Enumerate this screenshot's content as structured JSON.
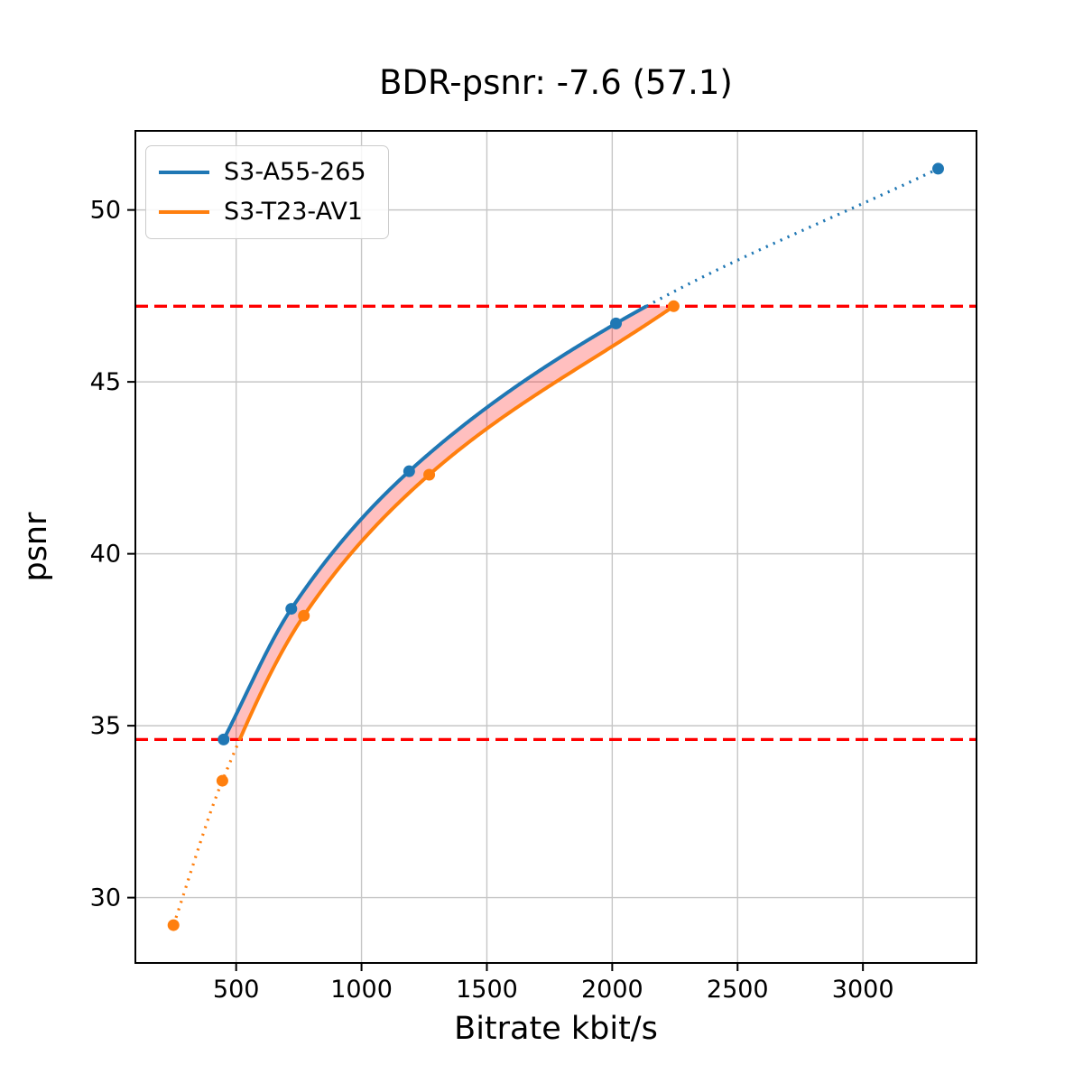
{
  "chart_data": {
    "type": "line",
    "title": "BDR-psnr: -7.6 (57.1)",
    "bdr_psnr": -7.6,
    "bdr_secondary": 57.1,
    "xlabel": "Bitrate kbit/s",
    "ylabel": "psnr",
    "xlim": [
      98,
      3453
    ],
    "ylim": [
      28.1,
      52.3
    ],
    "xticks": [
      500,
      1000,
      1500,
      2000,
      2500,
      3000
    ],
    "yticks": [
      30,
      35,
      40,
      45,
      50
    ],
    "grid": true,
    "grid_color": "#c6c6c6",
    "legend_position": "upper left",
    "series": [
      {
        "name": "S3-A55-265",
        "color": "#1f77b4",
        "marker": "o",
        "x": [
          450,
          720,
          1190,
          2015,
          3300
        ],
        "y": [
          34.6,
          38.4,
          42.4,
          46.7,
          51.2
        ]
      },
      {
        "name": "S3-T23-AV1",
        "color": "#ff7f0e",
        "marker": "o",
        "x": [
          250,
          445,
          770,
          1270,
          2245
        ],
        "y": [
          29.2,
          33.4,
          38.2,
          42.3,
          47.2
        ]
      }
    ],
    "overlap_band": {
      "y_min": 34.6,
      "y_max": 47.2,
      "line_color": "#ff0000",
      "line_style": "dashed",
      "fill_color": "#ff0000",
      "fill_alpha": 0.25
    },
    "style_note": "curves solid inside overlap band, dotted outside"
  }
}
